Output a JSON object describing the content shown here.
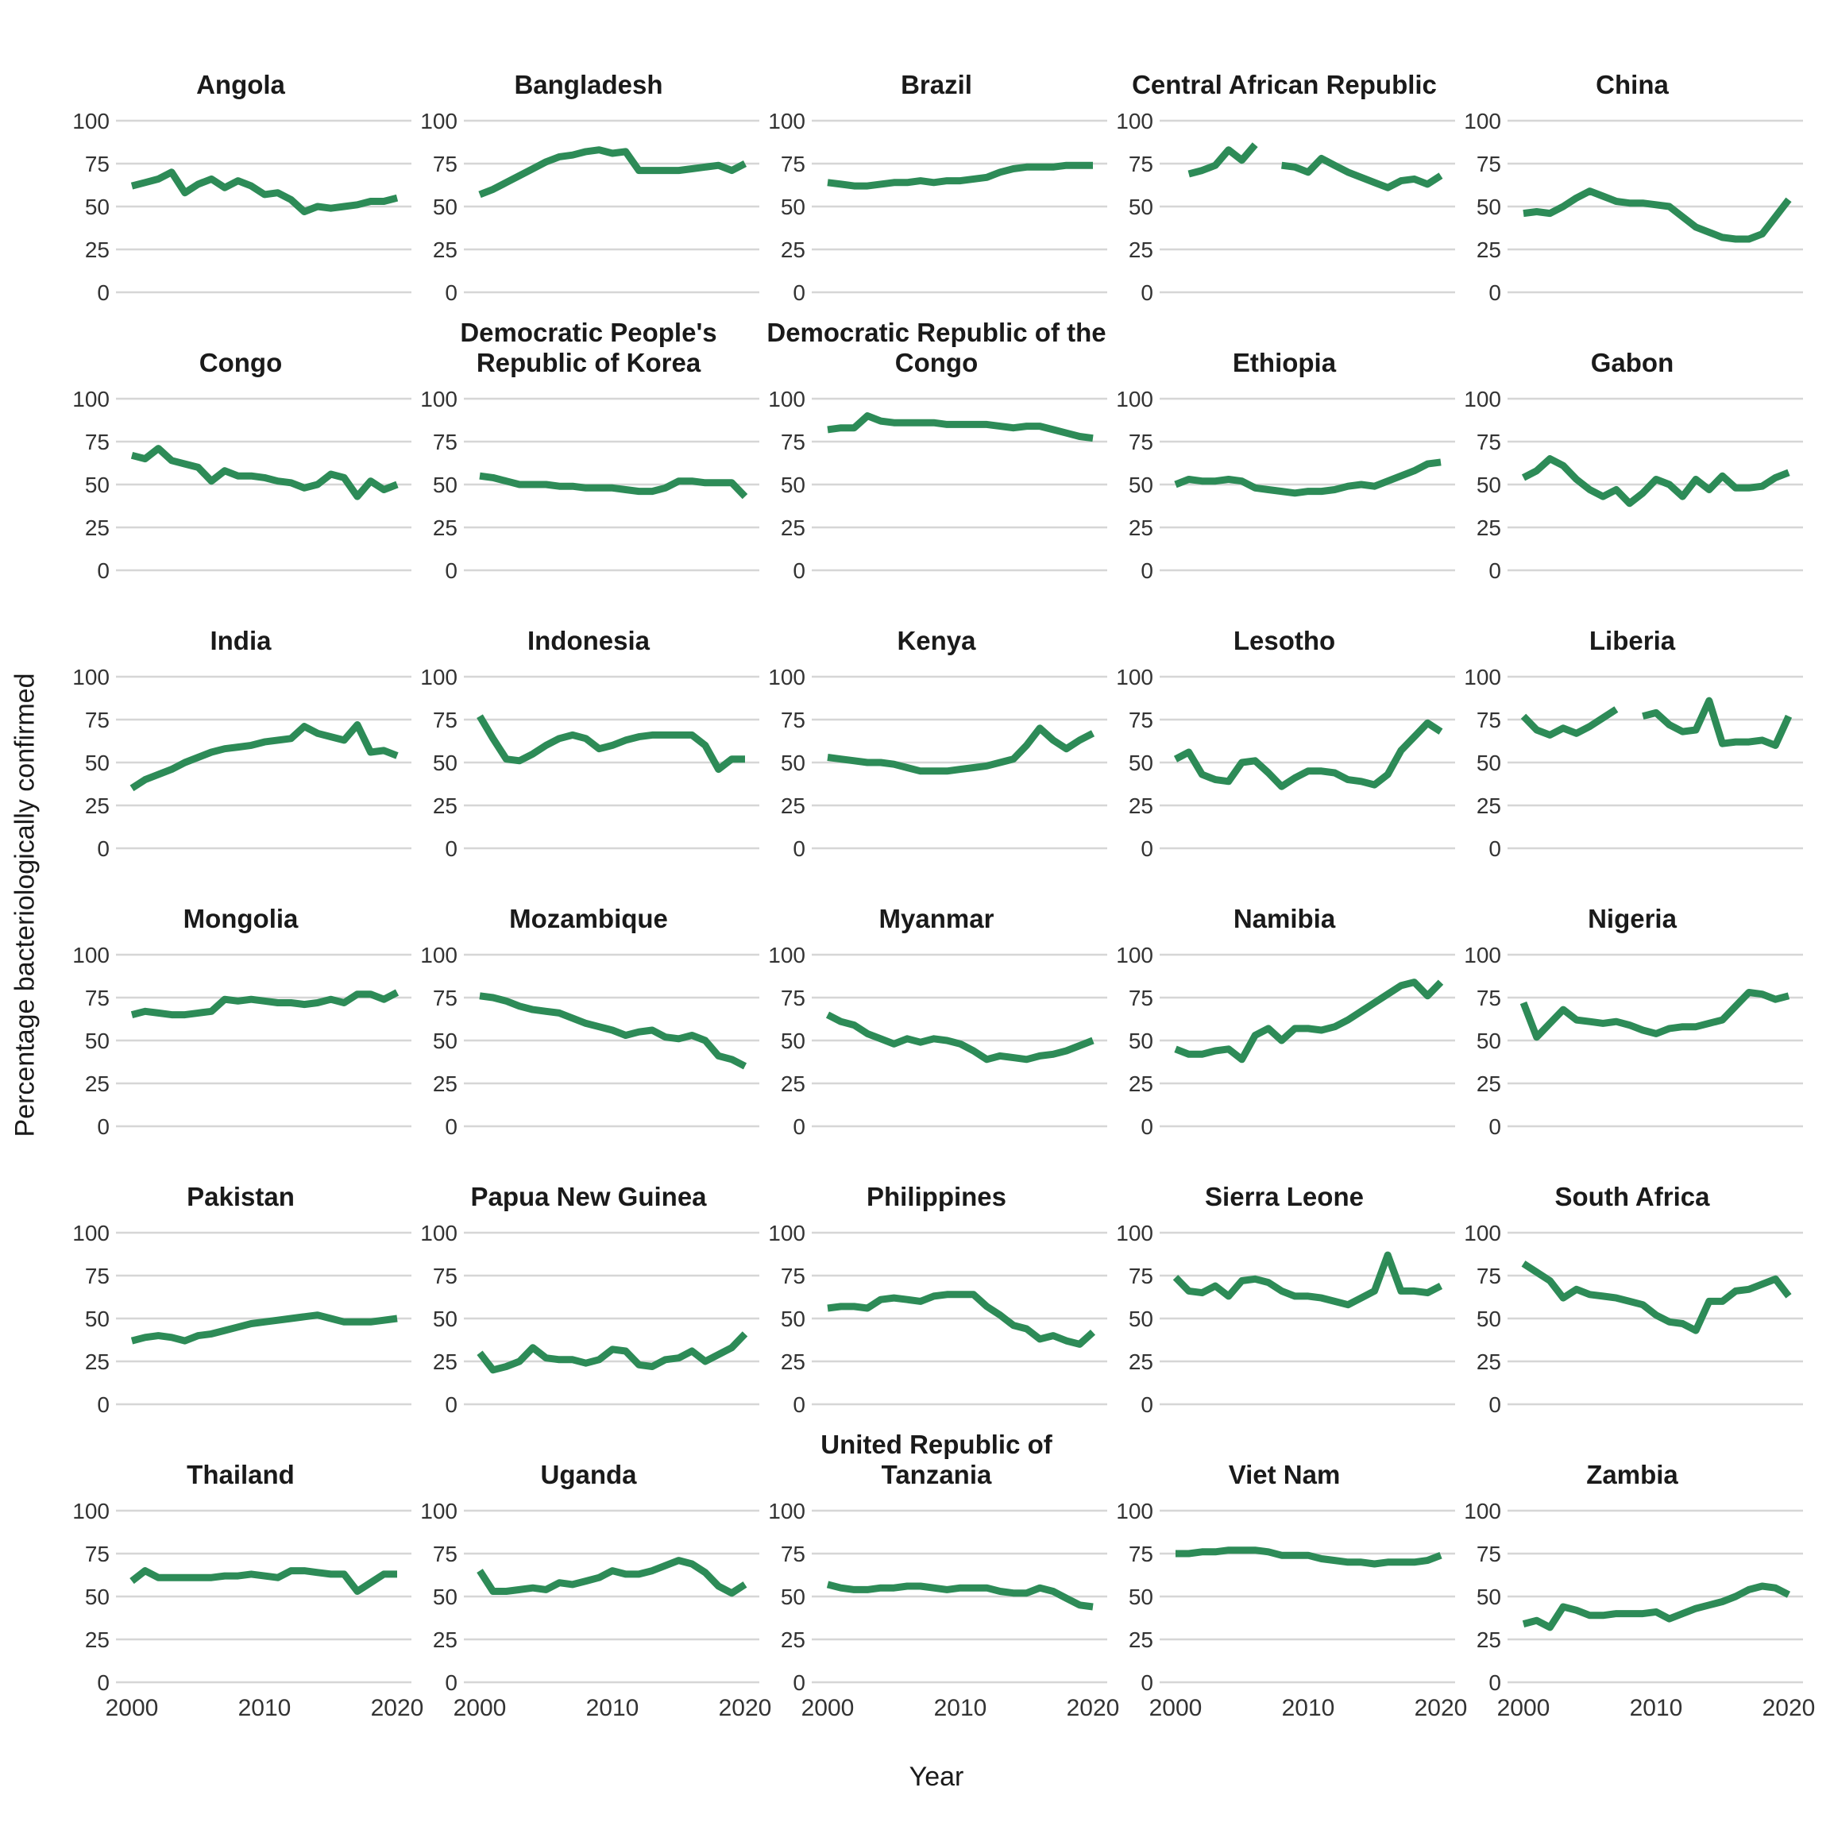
{
  "figure": {
    "y_axis_title": "Percentage bacteriologically confirmed",
    "x_axis_title": "Year"
  },
  "chart_data": {
    "type": "line",
    "x": [
      2000,
      2001,
      2002,
      2003,
      2004,
      2005,
      2006,
      2007,
      2008,
      2009,
      2010,
      2011,
      2012,
      2013,
      2014,
      2015,
      2016,
      2017,
      2018,
      2019,
      2020
    ],
    "xlabel": "Year",
    "ylabel": "Percentage bacteriologically confirmed",
    "ylim": [
      0,
      100
    ],
    "yticks": [
      0,
      25,
      50,
      75,
      100
    ],
    "xticks": [
      2000,
      2010,
      2020
    ],
    "grid": "horizontal major gridlines only, light gray, no panel border",
    "legend": "none",
    "line_color": "#2d8b57",
    "grid_color": "#d6d6d6",
    "tick_text_color": "#333333",
    "facets": [
      {
        "title": "Angola",
        "values": [
          62,
          64,
          66,
          70,
          58,
          63,
          66,
          61,
          65,
          62,
          57,
          58,
          54,
          47,
          50,
          49,
          50,
          51,
          53,
          53,
          55
        ]
      },
      {
        "title": "Bangladesh",
        "values": [
          57,
          60,
          64,
          68,
          72,
          76,
          79,
          80,
          82,
          83,
          81,
          82,
          71,
          71,
          71,
          71,
          72,
          73,
          74,
          71,
          75
        ]
      },
      {
        "title": "Brazil",
        "values": [
          64,
          63,
          62,
          62,
          63,
          64,
          64,
          65,
          64,
          65,
          65,
          66,
          67,
          70,
          72,
          73,
          73,
          73,
          74,
          74,
          74
        ]
      },
      {
        "title": "Central African Republic",
        "values": [
          null,
          69,
          71,
          74,
          83,
          77,
          86,
          null,
          74,
          73,
          70,
          78,
          74,
          70,
          67,
          64,
          61,
          65,
          66,
          63,
          68
        ]
      },
      {
        "title": "China",
        "values": [
          46,
          47,
          46,
          50,
          55,
          59,
          56,
          53,
          52,
          52,
          51,
          50,
          44,
          38,
          35,
          32,
          31,
          31,
          34,
          44,
          54
        ]
      },
      {
        "title": "Congo",
        "values": [
          67,
          65,
          71,
          64,
          62,
          60,
          52,
          58,
          55,
          55,
          54,
          52,
          51,
          48,
          50,
          56,
          54,
          43,
          52,
          47,
          50
        ]
      },
      {
        "title": "Democratic People's Republic of Korea",
        "values": [
          55,
          54,
          52,
          50,
          50,
          50,
          49,
          49,
          48,
          48,
          48,
          47,
          46,
          46,
          48,
          52,
          52,
          51,
          51,
          51,
          43
        ]
      },
      {
        "title": "Democratic Republic of the Congo",
        "values": [
          82,
          83,
          83,
          90,
          87,
          86,
          86,
          86,
          86,
          85,
          85,
          85,
          85,
          84,
          83,
          84,
          84,
          82,
          80,
          78,
          77
        ]
      },
      {
        "title": "Ethiopia",
        "values": [
          50,
          53,
          52,
          52,
          53,
          52,
          48,
          47,
          46,
          45,
          46,
          46,
          47,
          49,
          50,
          49,
          52,
          55,
          58,
          62,
          63
        ]
      },
      {
        "title": "Gabon",
        "values": [
          54,
          58,
          65,
          61,
          53,
          47,
          43,
          47,
          39,
          45,
          53,
          50,
          43,
          53,
          47,
          55,
          48,
          48,
          49,
          54,
          57
        ]
      },
      {
        "title": "India",
        "values": [
          35,
          40,
          43,
          46,
          50,
          53,
          56,
          58,
          59,
          60,
          62,
          63,
          64,
          71,
          67,
          65,
          63,
          72,
          56,
          57,
          54
        ]
      },
      {
        "title": "Indonesia",
        "values": [
          77,
          64,
          52,
          51,
          55,
          60,
          64,
          66,
          64,
          58,
          60,
          63,
          65,
          66,
          66,
          66,
          66,
          60,
          46,
          52,
          52
        ]
      },
      {
        "title": "Kenya",
        "values": [
          53,
          52,
          51,
          50,
          50,
          49,
          47,
          45,
          45,
          45,
          46,
          47,
          48,
          50,
          52,
          60,
          70,
          63,
          58,
          63,
          67
        ]
      },
      {
        "title": "Lesotho",
        "values": [
          52,
          56,
          43,
          40,
          39,
          50,
          51,
          44,
          36,
          41,
          45,
          45,
          44,
          40,
          39,
          37,
          43,
          57,
          65,
          73,
          68
        ]
      },
      {
        "title": "Liberia",
        "values": [
          77,
          69,
          66,
          70,
          67,
          71,
          76,
          81,
          null,
          77,
          79,
          72,
          68,
          69,
          86,
          61,
          62,
          62,
          63,
          60,
          77
        ]
      },
      {
        "title": "Mongolia",
        "values": [
          65,
          67,
          66,
          65,
          65,
          66,
          67,
          74,
          73,
          74,
          73,
          72,
          72,
          71,
          72,
          74,
          72,
          77,
          77,
          74,
          78
        ]
      },
      {
        "title": "Mozambique",
        "values": [
          76,
          75,
          73,
          70,
          68,
          67,
          66,
          63,
          60,
          58,
          56,
          53,
          55,
          56,
          52,
          51,
          53,
          50,
          41,
          39,
          35
        ]
      },
      {
        "title": "Myanmar",
        "values": [
          65,
          61,
          59,
          54,
          51,
          48,
          51,
          49,
          51,
          50,
          48,
          44,
          39,
          41,
          40,
          39,
          41,
          42,
          44,
          47,
          50
        ]
      },
      {
        "title": "Namibia",
        "values": [
          45,
          42,
          42,
          44,
          45,
          39,
          53,
          57,
          50,
          57,
          57,
          56,
          58,
          62,
          67,
          72,
          77,
          82,
          84,
          76,
          84
        ]
      },
      {
        "title": "Nigeria",
        "values": [
          72,
          52,
          60,
          68,
          62,
          61,
          60,
          61,
          59,
          56,
          54,
          57,
          58,
          58,
          60,
          62,
          70,
          78,
          77,
          74,
          76
        ]
      },
      {
        "title": "Pakistan",
        "values": [
          37,
          39,
          40,
          39,
          37,
          40,
          41,
          43,
          45,
          47,
          48,
          49,
          50,
          51,
          52,
          50,
          48,
          48,
          48,
          49,
          50
        ]
      },
      {
        "title": "Papua New Guinea",
        "values": [
          30,
          20,
          22,
          25,
          33,
          27,
          26,
          26,
          24,
          26,
          32,
          31,
          23,
          22,
          26,
          27,
          31,
          25,
          29,
          33,
          41
        ]
      },
      {
        "title": "Philippines",
        "values": [
          56,
          57,
          57,
          56,
          61,
          62,
          61,
          60,
          63,
          64,
          64,
          64,
          57,
          52,
          46,
          44,
          38,
          40,
          37,
          35,
          42
        ]
      },
      {
        "title": "Sierra Leone",
        "values": [
          74,
          66,
          65,
          69,
          63,
          72,
          73,
          71,
          66,
          63,
          63,
          62,
          60,
          58,
          62,
          66,
          87,
          66,
          66,
          65,
          69
        ]
      },
      {
        "title": "South Africa",
        "values": [
          82,
          77,
          72,
          62,
          67,
          64,
          63,
          62,
          60,
          58,
          52,
          48,
          47,
          43,
          60,
          60,
          66,
          67,
          70,
          73,
          63
        ]
      },
      {
        "title": "Thailand",
        "values": [
          59,
          65,
          61,
          61,
          61,
          61,
          61,
          62,
          62,
          63,
          62,
          61,
          65,
          65,
          64,
          63,
          63,
          53,
          58,
          63,
          63
        ]
      },
      {
        "title": "Uganda",
        "values": [
          65,
          53,
          53,
          54,
          55,
          54,
          58,
          57,
          59,
          61,
          65,
          63,
          63,
          65,
          68,
          71,
          69,
          64,
          56,
          52,
          57
        ]
      },
      {
        "title": "United Republic of Tanzania",
        "values": [
          57,
          55,
          54,
          54,
          55,
          55,
          56,
          56,
          55,
          54,
          55,
          55,
          55,
          53,
          52,
          52,
          55,
          53,
          49,
          45,
          44
        ]
      },
      {
        "title": "Viet Nam",
        "values": [
          75,
          75,
          76,
          76,
          77,
          77,
          77,
          76,
          74,
          74,
          74,
          72,
          71,
          70,
          70,
          69,
          70,
          70,
          70,
          71,
          74
        ]
      },
      {
        "title": "Zambia",
        "values": [
          34,
          36,
          32,
          44,
          42,
          39,
          39,
          40,
          40,
          40,
          41,
          37,
          40,
          43,
          45,
          47,
          50,
          54,
          56,
          55,
          51
        ]
      }
    ]
  }
}
